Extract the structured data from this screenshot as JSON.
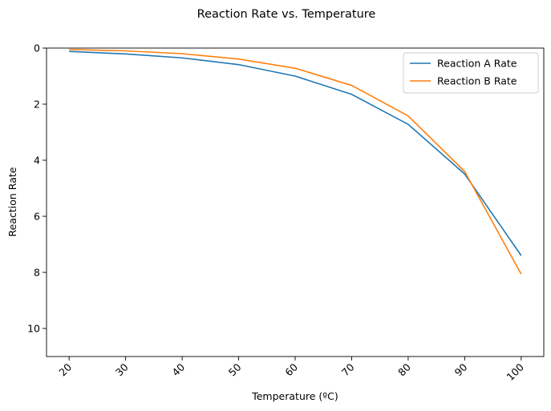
{
  "chart_data": {
    "type": "line",
    "title": "Reaction Rate vs. Temperature",
    "xlabel": "Temperature (ºC)",
    "ylabel": "Reaction Rate",
    "x": [
      20,
      30,
      40,
      50,
      60,
      70,
      80,
      90,
      100
    ],
    "xlim": [
      16,
      104
    ],
    "ylim": [
      11,
      0
    ],
    "y_inverted": true,
    "x_ticks": [
      20,
      30,
      40,
      50,
      60,
      70,
      80,
      90,
      100
    ],
    "y_ticks": [
      0,
      2,
      4,
      6,
      8,
      10
    ],
    "x_tick_rotation": 45,
    "grid": false,
    "legend_position": "top-right",
    "series": [
      {
        "name": "Reaction A Rate",
        "color": "#1f77b4",
        "values": [
          0.12,
          0.21,
          0.35,
          0.59,
          1.0,
          1.65,
          2.72,
          4.49,
          7.4
        ]
      },
      {
        "name": "Reaction B Rate",
        "color": "#ff7f0e",
        "values": [
          0.05,
          0.1,
          0.2,
          0.39,
          0.72,
          1.33,
          2.42,
          4.4,
          8.06
        ]
      }
    ]
  }
}
